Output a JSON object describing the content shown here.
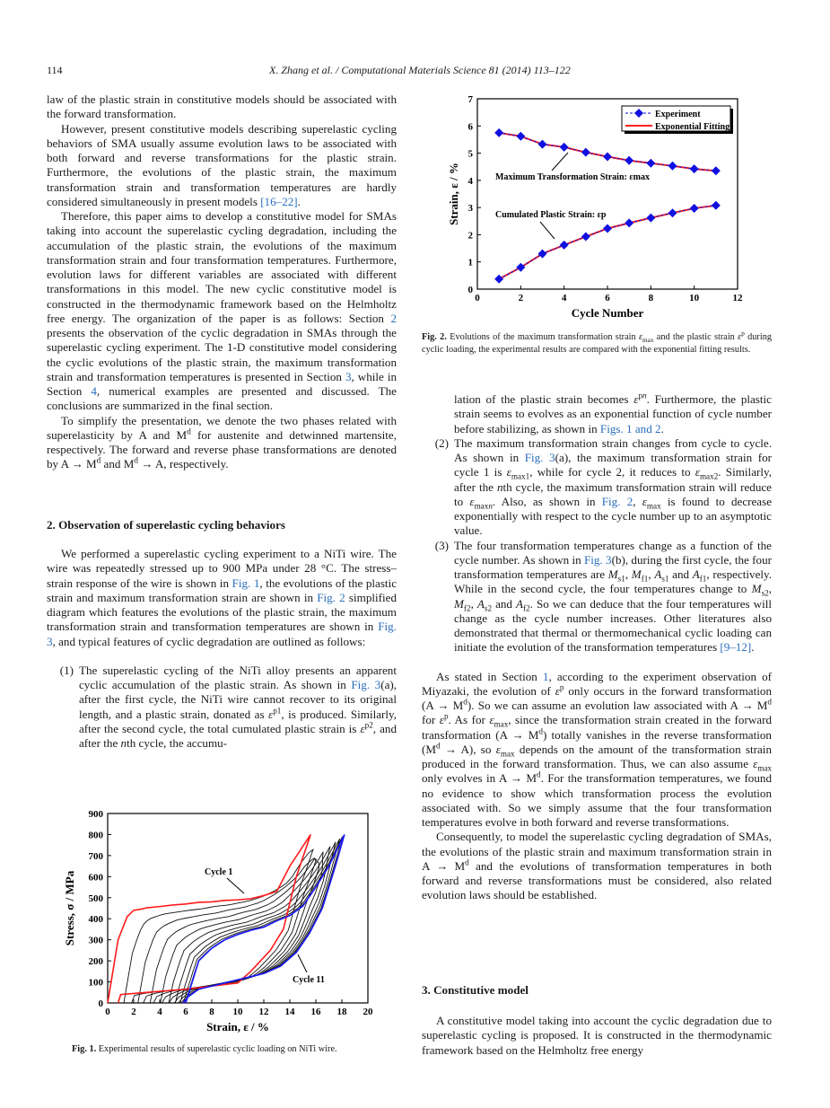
{
  "header": {
    "page_number": "114",
    "running_title": "X. Zhang et al. / Computational Materials Science 81 (2014) 113–122"
  },
  "left": {
    "p1": "law of the plastic strain in constitutive models should be associated with the forward transformation.",
    "p2": "However, present constitutive models describing superelastic cycling behaviors of SMA usually assume evolution laws to be associated with both forward and reverse transformations for the plastic strain. Furthermore, the evolutions of the plastic strain, the maximum transformation strain and transformation temperatures are hardly considered simultaneously in present models <span class=\"lnk\">[16–22]</span>.",
    "p3": "Therefore, this paper aims to develop a constitutive model for SMAs taking into account the superelastic cycling degradation, including the accumulation of the plastic strain, the evolutions of the maximum transformation strain and four transformation temperatures. Furthermore, evolution laws for different variables are associated with different transformations in this model. The new cyclic constitutive model is constructed in the thermodynamic framework based on the Helmholtz free energy. The organization of the paper is as follows: Section <span class=\"lnk\">2</span> presents the observation of the cyclic degradation in SMAs through the superelastic cycling experiment. The 1-D constitutive model considering the cyclic evolutions of the plastic strain, the maximum transformation strain and transformation temperatures is presented in Section <span class=\"lnk\">3</span>, while in Section <span class=\"lnk\">4</span>, numerical examples are presented and discussed. The conclusions are summarized in the final section.",
    "p4": "To simplify the presentation, we denote the two phases related with superelasticity by A and M<sup>d</sup> for austenite and detwinned martensite, respectively. The forward and reverse phase transformations are denoted by A → M<sup>d</sup> and M<sup>d</sup> → A, respectively.",
    "section2_title": "2. Observation of superelastic cycling behaviors",
    "p5": "We performed a superelastic cycling experiment to a NiTi wire. The wire was repeatedly stressed up to 900 MPa under 28 °C. The stress–strain response of the wire is shown in <span class=\"lnk\">Fig. 1</span>, the evolutions of the plastic strain and maximum transformation strain are shown in <span class=\"lnk\">Fig. 2</span> simplified diagram which features the evolutions of the plastic strain, the maximum transformation strain and transformation temperatures are shown in <span class=\"lnk\">Fig. 3</span>, and typical features of cyclic degradation are outlined as follows:",
    "item1_num": "(1)",
    "item1": "The superelastic cycling of the NiTi alloy presents an apparent cyclic accumulation of the plastic strain. As shown in <span class=\"lnk\">Fig. 3</span>(a), after the first cycle, the NiTi wire cannot recover to its original length, and a plastic strain, donated as <i>ε</i><sup>p1</sup>, is produced. Similarly, after the second cycle, the total cumulated plastic strain is <i>ε</i><sup>p2</sup>, and after the <i>n</i>th cycle, the accumu-"
  },
  "fig1": {
    "caption_label": "Fig. 1.",
    "caption": "Experimental results of superelastic cyclic loading on NiTi wire."
  },
  "fig2": {
    "caption_label": "Fig. 2.",
    "caption": "Evolutions of the maximum transformation strain <i>ε</i><sub>max</sub> and the plastic strain <i>ε</i><sup>p</sup> during cyclic loading, the experimental results are compared with the exponential fitting results."
  },
  "right": {
    "item1_cont": "lation of the plastic strain becomes <i>ε</i><sup>p<i>n</i></sup>. Furthermore, the plastic strain seems to evolves as an exponential function of cycle number before stabilizing, as shown in <span class=\"lnk\">Figs. 1 and 2</span>.",
    "item2_num": "(2)",
    "item2": "The maximum transformation strain changes from cycle to cycle. As shown in <span class=\"lnk\">Fig. 3</span>(a), the maximum transformation strain for cycle 1 is <i>ε</i><sub>max1</sub>, while for cycle 2, it reduces to <i>ε</i><sub>max2</sub>. Similarly, after the <i>n</i>th cycle, the maximum transformation strain will reduce to <i>ε</i><sub>max<i>n</i></sub>. Also, as shown in <span class=\"lnk\">Fig. 2</span>, <i>ε</i><sub>max</sub> is found to decrease exponentially with respect to the cycle number up to an asymptotic value.",
    "item3_num": "(3)",
    "item3": "The four transformation temperatures change as a function of the cycle number. As shown in <span class=\"lnk\">Fig. 3</span>(b), during the first cycle, the four transformation temperatures are <i>M</i><sub>s1</sub>, <i>M</i><sub>f1</sub>, <i>A</i><sub>s1</sub> and <i>A</i><sub>f1</sub>, respectively. While in the second cycle, the four temperatures change to <i>M</i><sub>s2</sub>, <i>M</i><sub>f2</sub>, <i>A</i><sub>s2</sub> and <i>A</i><sub>f2</sub>. So we can deduce that the four temperatures will change as the cycle number increases. Other literatures also demonstrated that thermal or thermomechanical cyclic loading can initiate the evolution of the transformation temperatures <span class=\"lnk\">[9–12]</span>.",
    "p6": "As stated in Section <span class=\"lnk\">1</span>, according to the experiment observation of Miyazaki, the evolution of <i>ε</i><sup>p</sup> only occurs in the forward transformation (A → M<sup>d</sup>). So we can assume an evolution law associated with A → M<sup>d</sup> for <i>ε</i><sup>p</sup>. As for <i>ε</i><sub>max</sub>, since the transformation strain created in the forward transformation (A → M<sup>d</sup>) totally vanishes in the reverse transformation (M<sup>d</sup> → A), so <i>ε</i><sub>max</sub> depends on the amount of the transformation strain produced in the forward transformation. Thus, we can also assume <i>ε</i><sub>max</sub> only evolves in A → M<sup>d</sup>. For the transformation temperatures, we found no evidence to show which transformation process the evolution associated with. So we simply assume that the four transformation temperatures evolve in both forward and reverse transformations.",
    "p7": "Consequently, to model the superelastic cycling degradation of SMAs, the evolutions of the plastic strain and maximum transformation strain in A → M<sup>d</sup> and the evolutions of transformation temperatures in both forward and reverse transformations must be considered, also related evolution laws should be established.",
    "section3_title": "3. Constitutive model",
    "p8": "A constitutive model taking into account the cyclic degradation due to superelastic cycling is proposed. It is constructed in the thermodynamic framework based on the Helmholtz free energy"
  },
  "chart_data": [
    {
      "type": "line",
      "figure": "Fig. 2",
      "xlabel": "Cycle Number",
      "ylabel": "Strain, ε / %",
      "xlim": [
        0,
        12
      ],
      "ylim": [
        0,
        7
      ],
      "xticks": [
        "0",
        "2",
        "4",
        "6",
        "8",
        "10",
        "12"
      ],
      "yticks": [
        "0",
        "1",
        "2",
        "3",
        "4",
        "5",
        "6",
        "7"
      ],
      "legend": {
        "position": "top-right",
        "entries": [
          "Experiment",
          "Exponential Fitting"
        ]
      },
      "annotations": [
        "Maximum Transformation Strain: εmax",
        "Cumulated Plastic Strain: εp"
      ],
      "x": [
        1,
        2,
        3,
        4,
        5,
        6,
        7,
        8,
        9,
        10,
        11
      ],
      "series": [
        {
          "name": "Maximum Transformation Strain (Experiment)",
          "values": [
            5.75,
            5.62,
            5.33,
            5.22,
            5.03,
            4.87,
            4.73,
            4.63,
            4.53,
            4.42,
            4.35
          ],
          "color": "#1010e0"
        },
        {
          "name": "Cumulated Plastic Strain (Experiment)",
          "values": [
            0.37,
            0.8,
            1.3,
            1.62,
            1.93,
            2.23,
            2.43,
            2.62,
            2.8,
            2.97,
            3.08
          ],
          "color": "#1010e0"
        }
      ],
      "fit_color": "#ff2020"
    },
    {
      "type": "line",
      "figure": "Fig. 1",
      "xlabel": "Strain, ε / %",
      "ylabel": "Stress, σ / MPa",
      "xlim": [
        0,
        20
      ],
      "ylim": [
        0,
        900
      ],
      "xticks": [
        "0",
        "2",
        "4",
        "6",
        "8",
        "10",
        "12",
        "14",
        "16",
        "18",
        "20"
      ],
      "yticks": [
        "0",
        "100",
        "200",
        "300",
        "400",
        "500",
        "600",
        "700",
        "800",
        "900"
      ],
      "annotations": [
        "Cycle 1",
        "Cycle 11"
      ],
      "cycles": 11,
      "series": [
        {
          "name": "Cycle 1",
          "color": "#ff1a1a",
          "points": [
            [
              0,
              0
            ],
            [
              0.8,
              300
            ],
            [
              1.5,
              410
            ],
            [
              2,
              440
            ],
            [
              2.5,
              445
            ],
            [
              3,
              452
            ],
            [
              4,
              458
            ],
            [
              5,
              465
            ],
            [
              6,
              470
            ],
            [
              7,
              478
            ],
            [
              8,
              480
            ],
            [
              9,
              487
            ],
            [
              10,
              490
            ],
            [
              11,
              495
            ],
            [
              12,
              510
            ],
            [
              13,
              530
            ],
            [
              14,
              650
            ],
            [
              15.6,
              800
            ],
            [
              14.5,
              600
            ],
            [
              13.5,
              350
            ],
            [
              12.5,
              250
            ],
            [
              11,
              150
            ],
            [
              10,
              95
            ],
            [
              8,
              80
            ],
            [
              6,
              65
            ],
            [
              4,
              55
            ],
            [
              2,
              45
            ],
            [
              1,
              40
            ],
            [
              0.8,
              0
            ]
          ]
        },
        {
          "name": "Cycle 11",
          "color": "#1a1aff",
          "points": [
            [
              6,
              0
            ],
            [
              6.3,
              60
            ],
            [
              7,
              200
            ],
            [
              8,
              260
            ],
            [
              9,
              300
            ],
            [
              10,
              325
            ],
            [
              11,
              345
            ],
            [
              12,
              360
            ],
            [
              13,
              390
            ],
            [
              14,
              415
            ],
            [
              15,
              460
            ],
            [
              16,
              550
            ],
            [
              17,
              650
            ],
            [
              18.2,
              800
            ],
            [
              17.5,
              650
            ],
            [
              16.5,
              450
            ],
            [
              15.5,
              330
            ],
            [
              14.5,
              240
            ],
            [
              13.3,
              175
            ],
            [
              12,
              140
            ],
            [
              10,
              110
            ],
            [
              8,
              80
            ],
            [
              7,
              65
            ],
            [
              6.2,
              30
            ],
            [
              5.8,
              0
            ]
          ]
        }
      ],
      "intermediate_color": "#111111"
    }
  ]
}
